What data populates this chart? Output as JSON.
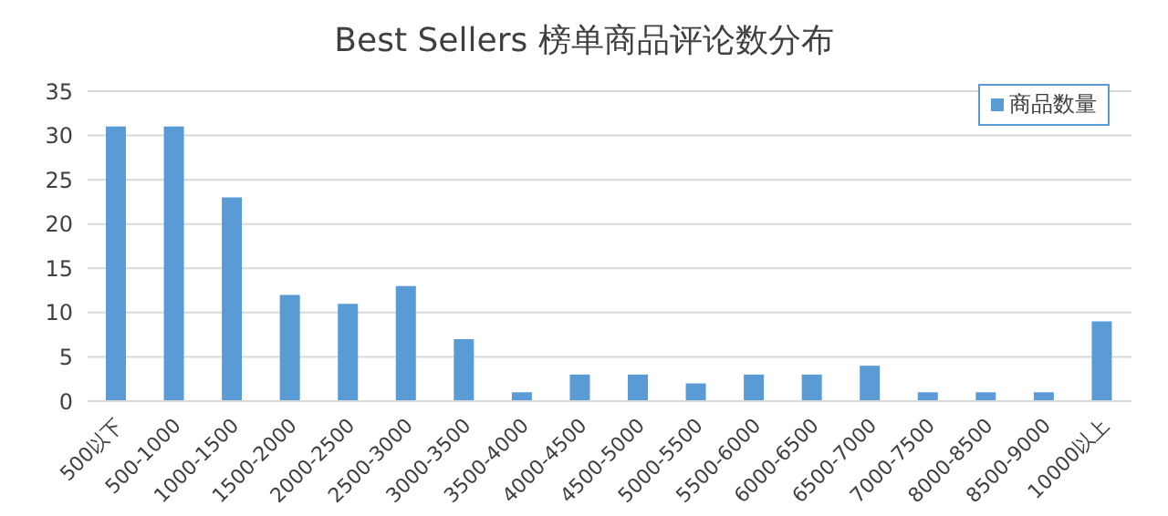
{
  "chart_data": {
    "type": "bar",
    "title": "Best Sellers 榜单商品评论数分布",
    "categories": [
      "500以下",
      "500-1000",
      "1000-1500",
      "1500-2000",
      "2000-2500",
      "2500-3000",
      "3000-3500",
      "3500-4000",
      "4000-4500",
      "4500-5000",
      "5000-5500",
      "5500-6000",
      "6000-6500",
      "6500-7000",
      "7000-7500",
      "8000-8500",
      "8500-9000",
      "10000以上"
    ],
    "series": [
      {
        "name": "商品数量",
        "color": "#5b9bd5",
        "values": [
          31,
          31,
          23,
          12,
          11,
          13,
          7,
          1,
          3,
          3,
          2,
          3,
          3,
          4,
          1,
          1,
          1,
          9
        ]
      }
    ],
    "ylim": [
      0,
      35
    ],
    "yticks": [
      0,
      5,
      10,
      15,
      20,
      25,
      30,
      35
    ],
    "grid": "y",
    "legend": "top right"
  }
}
